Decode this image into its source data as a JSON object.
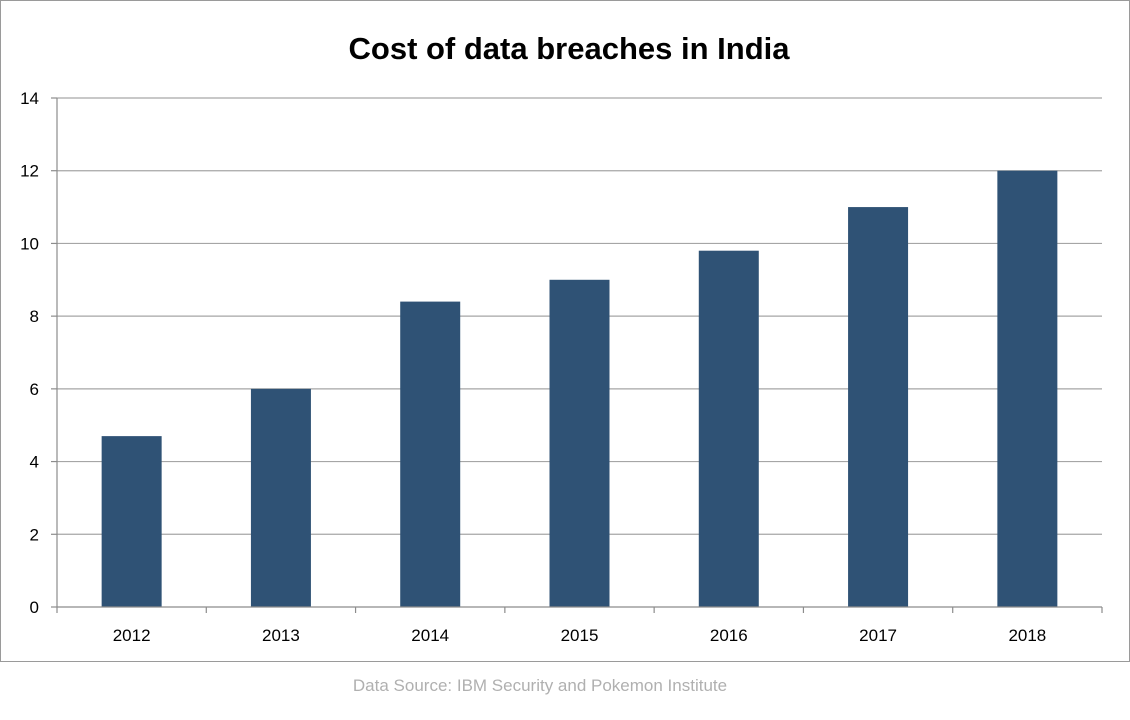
{
  "chart_data": {
    "type": "bar",
    "title": "Cost of data breaches in India",
    "xlabel": "",
    "ylabel": "",
    "categories": [
      "2012",
      "2013",
      "2014",
      "2015",
      "2016",
      "2017",
      "2018"
    ],
    "values": [
      4.7,
      6,
      8.4,
      9,
      9.8,
      11,
      12
    ],
    "ylim": [
      0,
      14
    ],
    "yticks": [
      "0",
      "2",
      "4",
      "6",
      "8",
      "10",
      "12",
      "14"
    ],
    "grid": true,
    "legend": "none",
    "bar_color": "#2f5275",
    "grid_color": "#a6a6a6"
  },
  "footer": {
    "source": "Data Source: IBM Security and Pokemon Institute"
  }
}
